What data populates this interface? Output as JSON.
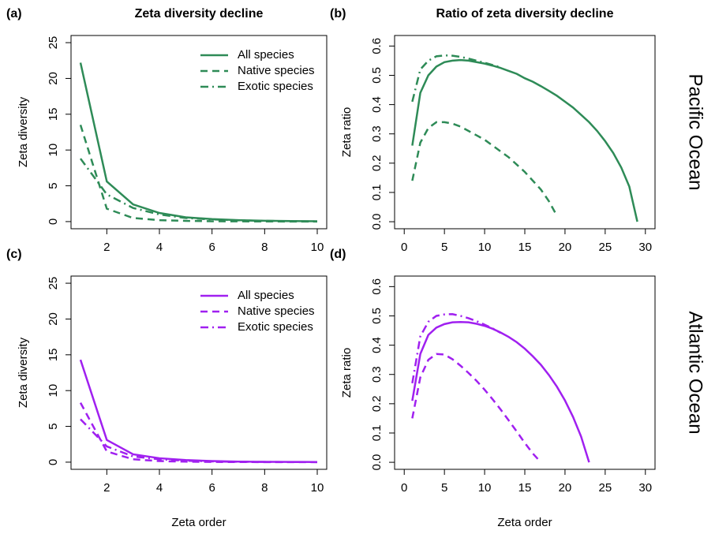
{
  "chart_data": [
    {
      "type": "line",
      "label": "(a)",
      "title": "Zeta diversity decline",
      "ylabel": "Zeta diversity",
      "xlim": [
        0.64,
        10.36
      ],
      "ylim": [
        -1,
        26
      ],
      "xticks": [
        2,
        4,
        6,
        8,
        10
      ],
      "yticks": [
        0,
        5,
        10,
        15,
        20,
        25
      ],
      "legend": "topright",
      "series": [
        {
          "name": "All species",
          "color": "#2e8b57",
          "dash": "solid",
          "x": [
            1,
            2,
            3,
            4,
            5,
            6,
            7,
            8,
            9,
            10
          ],
          "values": [
            22.2,
            5.6,
            2.4,
            1.2,
            0.6,
            0.35,
            0.2,
            0.12,
            0.07,
            0.04
          ]
        },
        {
          "name": "Native species",
          "color": "#2e8b57",
          "dash": "dashed",
          "x": [
            1,
            2,
            3,
            4,
            5,
            6,
            7,
            8,
            9,
            10
          ],
          "values": [
            13.5,
            1.8,
            0.5,
            0.2,
            0.1,
            0.05,
            0.03,
            0.02,
            0.01,
            0.01
          ]
        },
        {
          "name": "Exotic species",
          "color": "#2e8b57",
          "dash": "dashdot",
          "x": [
            1,
            2,
            3,
            4,
            5,
            6,
            7,
            8,
            9,
            10
          ],
          "values": [
            8.8,
            3.8,
            1.9,
            1.0,
            0.5,
            0.3,
            0.17,
            0.1,
            0.06,
            0.03
          ]
        }
      ]
    },
    {
      "type": "line",
      "label": "(b)",
      "title": "Ratio of zeta diversity decline",
      "ylabel": "Zeta ratio",
      "row_label": "Pacific Ocean",
      "xlim": [
        -1.2,
        31.2
      ],
      "ylim": [
        -0.024,
        0.636
      ],
      "xticks": [
        0,
        5,
        10,
        15,
        20,
        25,
        30
      ],
      "yticks": [
        {
          "value": 0,
          "label": "0.0"
        },
        0.1,
        0.2,
        0.3,
        0.4,
        0.5,
        0.6
      ],
      "series": [
        {
          "name": "All species",
          "color": "#2e8b57",
          "dash": "solid",
          "x": [
            1,
            2,
            3,
            4,
            5,
            6,
            7,
            8,
            9,
            10,
            11,
            12,
            13,
            14,
            15,
            16,
            17,
            18,
            19,
            20,
            21,
            22,
            23,
            24,
            25,
            26,
            27,
            28,
            29
          ],
          "values": [
            0.26,
            0.44,
            0.5,
            0.53,
            0.545,
            0.55,
            0.552,
            0.55,
            0.545,
            0.54,
            0.533,
            0.525,
            0.515,
            0.505,
            0.49,
            0.478,
            0.463,
            0.447,
            0.43,
            0.41,
            0.39,
            0.365,
            0.34,
            0.31,
            0.275,
            0.235,
            0.185,
            0.12,
            0.0
          ]
        },
        {
          "name": "Native species",
          "color": "#2e8b57",
          "dash": "dashed",
          "x": [
            1,
            2,
            3,
            4,
            5,
            6,
            7,
            8,
            9,
            10,
            11,
            12,
            13,
            14,
            15,
            16,
            17,
            18,
            19
          ],
          "values": [
            0.14,
            0.27,
            0.32,
            0.34,
            0.34,
            0.335,
            0.325,
            0.31,
            0.295,
            0.28,
            0.26,
            0.24,
            0.22,
            0.195,
            0.17,
            0.14,
            0.11,
            0.07,
            0.02
          ]
        },
        {
          "name": "Exotic species",
          "color": "#2e8b57",
          "dash": "dashdot",
          "x": [
            1,
            2,
            3,
            4,
            5,
            6,
            7,
            8,
            9,
            10,
            11,
            12
          ],
          "values": [
            0.41,
            0.52,
            0.55,
            0.565,
            0.568,
            0.567,
            0.563,
            0.557,
            0.55,
            0.543,
            0.535,
            0.527
          ]
        }
      ]
    },
    {
      "type": "line",
      "label": "(c)",
      "ylabel": "Zeta diversity",
      "xlabel": "Zeta order",
      "xlim": [
        0.64,
        10.36
      ],
      "ylim": [
        -1,
        26
      ],
      "xticks": [
        2,
        4,
        6,
        8,
        10
      ],
      "yticks": [
        0,
        5,
        10,
        15,
        20,
        25
      ],
      "legend": "topright",
      "series": [
        {
          "name": "All species",
          "color": "#a020f0",
          "dash": "solid",
          "x": [
            1,
            2,
            3,
            4,
            5,
            6,
            7,
            8,
            9,
            10
          ],
          "values": [
            14.3,
            3.1,
            1.1,
            0.55,
            0.3,
            0.15,
            0.08,
            0.05,
            0.03,
            0.02
          ]
        },
        {
          "name": "Native species",
          "color": "#a020f0",
          "dash": "dashed",
          "x": [
            1,
            2,
            3,
            4,
            5,
            6,
            7,
            8,
            9,
            10
          ],
          "values": [
            8.3,
            1.5,
            0.4,
            0.15,
            0.07,
            0.03,
            0.02,
            0.01,
            0.01,
            0.0
          ]
        },
        {
          "name": "Exotic species",
          "color": "#a020f0",
          "dash": "dashdot",
          "x": [
            1,
            2,
            3,
            4,
            5,
            6,
            7,
            8,
            9,
            10
          ],
          "values": [
            6.0,
            2.2,
            0.8,
            0.4,
            0.2,
            0.1,
            0.05,
            0.03,
            0.02,
            0.01
          ]
        }
      ]
    },
    {
      "type": "line",
      "label": "(d)",
      "ylabel": "Zeta ratio",
      "xlabel": "Zeta order",
      "row_label": "Atlantic Ocean",
      "xlim": [
        -1.2,
        31.2
      ],
      "ylim": [
        -0.024,
        0.636
      ],
      "xticks": [
        0,
        5,
        10,
        15,
        20,
        25,
        30
      ],
      "yticks": [
        {
          "value": 0,
          "label": "0.0"
        },
        0.1,
        0.2,
        0.3,
        0.4,
        0.5,
        0.6
      ],
      "series": [
        {
          "name": "All species",
          "color": "#a020f0",
          "dash": "solid",
          "x": [
            1,
            2,
            3,
            4,
            5,
            6,
            7,
            8,
            9,
            10,
            11,
            12,
            13,
            14,
            15,
            16,
            17,
            18,
            19,
            20,
            21,
            22,
            23
          ],
          "values": [
            0.21,
            0.37,
            0.435,
            0.46,
            0.472,
            0.478,
            0.479,
            0.478,
            0.473,
            0.466,
            0.456,
            0.443,
            0.428,
            0.41,
            0.388,
            0.362,
            0.333,
            0.298,
            0.258,
            0.211,
            0.155,
            0.088,
            0.0
          ]
        },
        {
          "name": "Native species",
          "color": "#a020f0",
          "dash": "dashed",
          "x": [
            1,
            2,
            3,
            4,
            5,
            6,
            7,
            8,
            9,
            10,
            11,
            12,
            13,
            14,
            15,
            16,
            17
          ],
          "values": [
            0.15,
            0.29,
            0.35,
            0.37,
            0.368,
            0.352,
            0.33,
            0.305,
            0.278,
            0.248,
            0.215,
            0.18,
            0.143,
            0.105,
            0.066,
            0.03,
            0.0
          ]
        },
        {
          "name": "Exotic species",
          "color": "#a020f0",
          "dash": "dashdot",
          "x": [
            1,
            2,
            3,
            4,
            5,
            6,
            7,
            8,
            9,
            10,
            11,
            12
          ],
          "values": [
            0.27,
            0.43,
            0.48,
            0.5,
            0.505,
            0.506,
            0.5,
            0.492,
            0.482,
            0.47,
            0.457,
            0.442
          ]
        }
      ]
    }
  ]
}
